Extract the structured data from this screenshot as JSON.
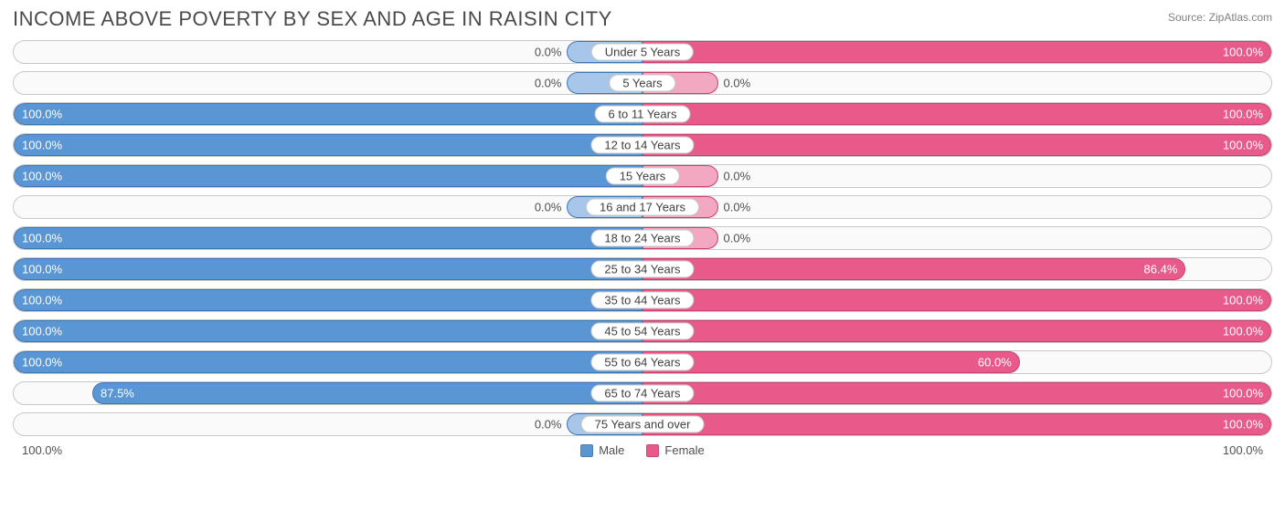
{
  "title": "INCOME ABOVE POVERTY BY SEX AND AGE IN RAISIN CITY",
  "source": "Source: ZipAtlas.com",
  "axis": {
    "left": "100.0%",
    "right": "100.0%"
  },
  "legend": {
    "male": {
      "label": "Male",
      "color": "#5a95d4",
      "border": "#3f77b5"
    },
    "female": {
      "label": "Female",
      "color": "#e85a89",
      "border": "#cc3f6e"
    }
  },
  "style": {
    "row_border": "#c8c8c8",
    "row_bg": "#fafafa",
    "male_light": "#a7c6e8",
    "female_light": "#f3a8c1",
    "text_inside": "#ffffff",
    "text_outside": "#505050",
    "min_bar_pct": 12
  },
  "rows": [
    {
      "label": "Under 5 Years",
      "male": 0.0,
      "female": 100.0
    },
    {
      "label": "5 Years",
      "male": 0.0,
      "female": 0.0
    },
    {
      "label": "6 to 11 Years",
      "male": 100.0,
      "female": 100.0
    },
    {
      "label": "12 to 14 Years",
      "male": 100.0,
      "female": 100.0
    },
    {
      "label": "15 Years",
      "male": 100.0,
      "female": 0.0
    },
    {
      "label": "16 and 17 Years",
      "male": 0.0,
      "female": 0.0
    },
    {
      "label": "18 to 24 Years",
      "male": 100.0,
      "female": 0.0
    },
    {
      "label": "25 to 34 Years",
      "male": 100.0,
      "female": 86.4
    },
    {
      "label": "35 to 44 Years",
      "male": 100.0,
      "female": 100.0
    },
    {
      "label": "45 to 54 Years",
      "male": 100.0,
      "female": 100.0
    },
    {
      "label": "55 to 64 Years",
      "male": 100.0,
      "female": 60.0
    },
    {
      "label": "65 to 74 Years",
      "male": 87.5,
      "female": 100.0
    },
    {
      "label": "75 Years and over",
      "male": 0.0,
      "female": 100.0
    }
  ]
}
